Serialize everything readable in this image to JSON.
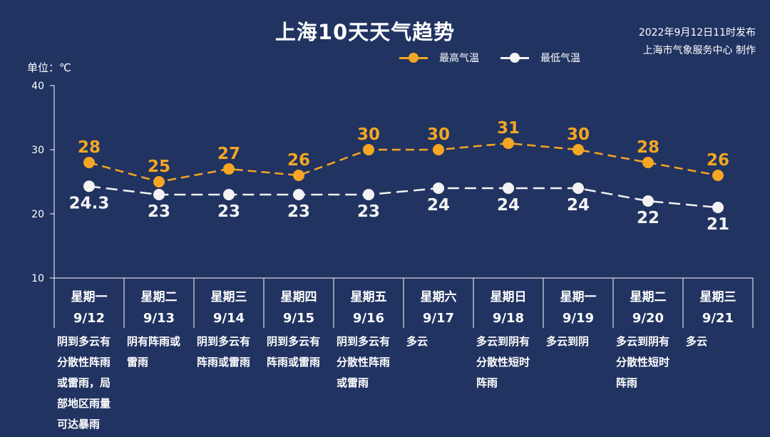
{
  "header": {
    "title": "上海10天天气趋势",
    "publish_line1": "2022年9月12日11时发布",
    "publish_line2": "上海市气象服务中心 制作",
    "unit_label": "单位：℃"
  },
  "colors": {
    "background": "#213361",
    "high": "#f5a623",
    "low": "#f3f3f3",
    "axis": "#ffffff"
  },
  "chart_data": {
    "type": "line",
    "title": "上海10天天气趋势",
    "ylabel": "单位：℃",
    "ylim": [
      10,
      40
    ],
    "yticks": [
      "10",
      "20",
      "30",
      "40"
    ],
    "legend_position": "top-right",
    "grid": false,
    "categories": [
      {
        "weekday": "星期一",
        "date": "9/12"
      },
      {
        "weekday": "星期二",
        "date": "9/13"
      },
      {
        "weekday": "星期三",
        "date": "9/14"
      },
      {
        "weekday": "星期四",
        "date": "9/15"
      },
      {
        "weekday": "星期五",
        "date": "9/16"
      },
      {
        "weekday": "星期六",
        "date": "9/17"
      },
      {
        "weekday": "星期日",
        "date": "9/18"
      },
      {
        "weekday": "星期一",
        "date": "9/19"
      },
      {
        "weekday": "星期二",
        "date": "9/20"
      },
      {
        "weekday": "星期三",
        "date": "9/21"
      }
    ],
    "series": [
      {
        "name": "最高气温",
        "color": "#f5a623",
        "values": [
          28,
          25,
          27,
          26,
          30,
          30,
          31,
          30,
          28,
          26
        ],
        "labels": [
          "28",
          "25",
          "27",
          "26",
          "30",
          "30",
          "31",
          "30",
          "28",
          "26"
        ]
      },
      {
        "name": "最低气温",
        "color": "#f3f3f3",
        "values": [
          24.3,
          23,
          23,
          23,
          23,
          24,
          24,
          24,
          22,
          21
        ],
        "labels": [
          "24.3",
          "23",
          "23",
          "23",
          "23",
          "24",
          "24",
          "24",
          "22",
          "21"
        ]
      }
    ],
    "descriptions": [
      "阴到多云有\n分散性阵雨\n或雷雨，局\n部地区雨量\n可达暴雨",
      "阴有阵雨或\n雷雨",
      "阴到多云有\n阵雨或雷雨",
      "阴到多云有\n阵雨或雷雨",
      "阴到多云有\n分散性阵雨\n或雷雨",
      "多云",
      "多云到阴有\n分散性短时\n阵雨",
      "多云到阴",
      "多云到阴有\n分散性短时\n阵雨",
      "多云"
    ]
  }
}
